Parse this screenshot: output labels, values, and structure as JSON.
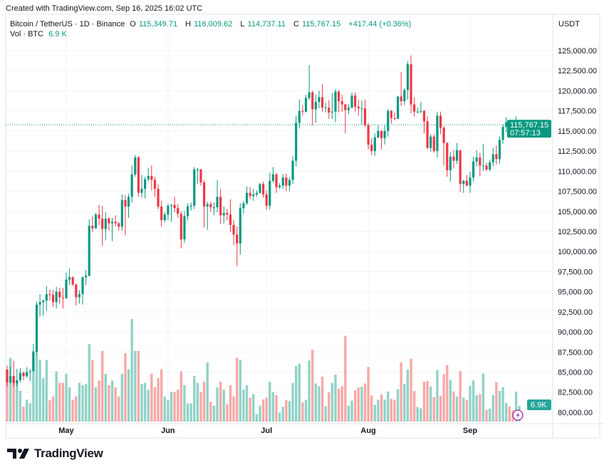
{
  "header": {
    "created": "Created with TradingView.com, Sep 16, 2025 16:02 UTC",
    "symbol": "Bitcoin / TetherUS · 1D · Binance",
    "o_label": "O",
    "o": "115,349.71",
    "h_label": "H",
    "h": "116,009.62",
    "l_label": "L",
    "l": "114,737.11",
    "c_label": "C",
    "c": "115,767.15",
    "change": "+417.44 (+0.36%)",
    "vol_label": "Vol · BTC",
    "vol": "6.9 K"
  },
  "price_axis": {
    "currency": "USDT",
    "last_price": "115,767.15",
    "countdown": "07:57:13",
    "volume_badge": "6.9K"
  },
  "footer": {
    "brand": "TradingView"
  },
  "colors": {
    "up": "#089981",
    "down": "#f23645",
    "vol_up": "#92d2c7",
    "vol_down": "#f7a9a7",
    "lightning": "#9c27b0"
  },
  "icons": {
    "logo": "tradingview-logo-icon",
    "lightning": "lightning-icon"
  },
  "chart_data": {
    "type": "candlestick",
    "first_date": "2025-04-13",
    "interval": "1D",
    "y_ticks": [
      "125,000.00",
      "122,500.00",
      "120,000.00",
      "117,500.00",
      "115,000.00",
      "112,500.00",
      "110,000.00",
      "107,500.00",
      "105,000.00",
      "102,500.00",
      "100,000.00",
      "97,500.00",
      "95,000.00",
      "92,500.00",
      "90,000.00",
      "87,500.00",
      "85,000.00",
      "82,500.00",
      "80,000.00"
    ],
    "ylim": [
      80000,
      125000
    ],
    "x_ticks": [
      {
        "label": "May",
        "date": "2025-05-01"
      },
      {
        "label": "Jun",
        "date": "2025-06-01"
      },
      {
        "label": "Jul",
        "date": "2025-07-01"
      },
      {
        "label": "Aug",
        "date": "2025-08-01"
      },
      {
        "label": "Sep",
        "date": "2025-09-01"
      }
    ],
    "grid": true,
    "columns": [
      "open",
      "high",
      "low",
      "close",
      "volume_k_btc"
    ],
    "candles": [
      [
        85300,
        85800,
        83200,
        83700,
        22.6
      ],
      [
        83700,
        85700,
        83600,
        84500,
        28
      ],
      [
        84500,
        86400,
        83200,
        83600,
        20
      ],
      [
        83600,
        85400,
        83200,
        84000,
        17
      ],
      [
        84000,
        85500,
        83700,
        84900,
        13.5
      ],
      [
        84900,
        85100,
        84000,
        84500,
        6.5
      ],
      [
        84500,
        85600,
        84300,
        85000,
        9.6
      ],
      [
        85000,
        85400,
        83900,
        85100,
        8
      ],
      [
        85100,
        88500,
        85100,
        87500,
        31
      ],
      [
        87500,
        93800,
        87200,
        93400,
        30
      ],
      [
        93400,
        94700,
        91900,
        93700,
        27
      ],
      [
        93700,
        94000,
        92000,
        93900,
        19
      ],
      [
        93900,
        95700,
        92600,
        94700,
        27
      ],
      [
        94700,
        95300,
        93900,
        94600,
        9.4
      ],
      [
        94600,
        95200,
        93100,
        93700,
        11
      ],
      [
        93700,
        95600,
        92900,
        95000,
        22
      ],
      [
        95000,
        95500,
        93500,
        94300,
        17
      ],
      [
        94300,
        95500,
        92900,
        94200,
        17
      ],
      [
        94200,
        97400,
        94100,
        96500,
        21
      ],
      [
        96500,
        97900,
        95800,
        96800,
        15
      ],
      [
        96800,
        96900,
        95700,
        95900,
        9.6
      ],
      [
        95900,
        96000,
        93300,
        94300,
        11
      ],
      [
        94300,
        95200,
        93500,
        94700,
        17
      ],
      [
        94700,
        96900,
        93400,
        96800,
        16
      ],
      [
        96800,
        97700,
        95800,
        97000,
        16.5
      ],
      [
        97000,
        104000,
        96900,
        103200,
        34
      ],
      [
        103200,
        104400,
        102400,
        102900,
        27
      ],
      [
        102900,
        104800,
        102800,
        104600,
        15
      ],
      [
        104600,
        105800,
        103300,
        104100,
        18
      ],
      [
        104100,
        105700,
        100700,
        102800,
        31
      ],
      [
        102800,
        104900,
        101400,
        104100,
        21
      ],
      [
        104100,
        104300,
        102600,
        103500,
        16
      ],
      [
        103500,
        104200,
        101300,
        103700,
        18
      ],
      [
        103700,
        104500,
        103100,
        103500,
        15
      ],
      [
        103500,
        103700,
        102600,
        103100,
        11
      ],
      [
        103100,
        107100,
        102600,
        106400,
        21
      ],
      [
        106400,
        107000,
        102000,
        105600,
        30
      ],
      [
        105600,
        107200,
        104200,
        106800,
        23
      ],
      [
        106800,
        110700,
        106100,
        109600,
        45
      ],
      [
        109600,
        112000,
        109300,
        111700,
        31
      ],
      [
        111700,
        111900,
        106800,
        107300,
        31
      ],
      [
        107300,
        109500,
        106700,
        107800,
        16.5
      ],
      [
        107800,
        109300,
        106600,
        109000,
        17
      ],
      [
        109000,
        110400,
        108700,
        109400,
        14
      ],
      [
        109400,
        110700,
        107600,
        108900,
        21
      ],
      [
        108900,
        109300,
        106800,
        107800,
        15
      ],
      [
        107800,
        108400,
        105300,
        105600,
        19
      ],
      [
        105600,
        106300,
        103100,
        103900,
        23
      ],
      [
        103900,
        104900,
        103600,
        104600,
        11
      ],
      [
        104600,
        105900,
        103900,
        105700,
        9.5
      ],
      [
        105700,
        105900,
        103700,
        105800,
        13
      ],
      [
        105800,
        106800,
        104900,
        105400,
        13
      ],
      [
        105400,
        105900,
        104200,
        104700,
        14
      ],
      [
        104700,
        105000,
        100400,
        101500,
        22
      ],
      [
        101500,
        105000,
        101100,
        104400,
        16
      ],
      [
        104400,
        106000,
        103900,
        105600,
        8
      ],
      [
        105600,
        106100,
        105100,
        105700,
        8
      ],
      [
        105700,
        110500,
        105300,
        110200,
        20
      ],
      [
        110200,
        110400,
        108400,
        110200,
        17
      ],
      [
        110200,
        110300,
        108200,
        108600,
        13
      ],
      [
        108600,
        108900,
        103000,
        105600,
        17.5
      ],
      [
        105600,
        106200,
        102700,
        105900,
        26
      ],
      [
        105900,
        106200,
        104900,
        105500,
        8.7
      ],
      [
        105500,
        106100,
        104500,
        105500,
        7
      ],
      [
        105500,
        108900,
        104900,
        106800,
        15
      ],
      [
        106800,
        107800,
        103400,
        104500,
        17.5
      ],
      [
        104500,
        105600,
        103500,
        104800,
        14
      ],
      [
        104800,
        105300,
        103900,
        104600,
        7.6
      ],
      [
        104600,
        106500,
        102400,
        103300,
        16
      ],
      [
        103300,
        103900,
        100800,
        102100,
        11
      ],
      [
        102100,
        103100,
        98200,
        101000,
        28
      ],
      [
        101000,
        106000,
        99600,
        105400,
        27
      ],
      [
        105400,
        106300,
        104700,
        106000,
        14
      ],
      [
        106000,
        108100,
        105800,
        107300,
        16
      ],
      [
        107300,
        108000,
        106500,
        106900,
        10.5
      ],
      [
        106900,
        107800,
        106300,
        107100,
        12
      ],
      [
        107100,
        107600,
        106800,
        107300,
        3.3
      ],
      [
        107300,
        108500,
        107200,
        108400,
        7
      ],
      [
        108400,
        108700,
        106700,
        107100,
        9.7
      ],
      [
        107100,
        107600,
        105200,
        105700,
        10.5
      ],
      [
        105700,
        109800,
        105200,
        108800,
        17.5
      ],
      [
        108800,
        110500,
        108600,
        109600,
        12.9
      ],
      [
        109600,
        109800,
        107300,
        108000,
        11.6
      ],
      [
        108000,
        108500,
        107800,
        108200,
        3.9
      ],
      [
        108200,
        109600,
        107800,
        109200,
        6.5
      ],
      [
        109200,
        109700,
        107500,
        108200,
        9.4
      ],
      [
        108200,
        109200,
        107500,
        108900,
        9
      ],
      [
        108900,
        111900,
        108400,
        111300,
        16.9
      ],
      [
        111300,
        116900,
        110600,
        116000,
        24.4
      ],
      [
        116000,
        118900,
        115300,
        117500,
        25.4
      ],
      [
        117500,
        118200,
        116900,
        117400,
        8.4
      ],
      [
        117400,
        119500,
        117300,
        119100,
        9.5
      ],
      [
        119100,
        123200,
        118900,
        119800,
        26.8
      ],
      [
        119800,
        120000,
        115700,
        117700,
        31.5
      ],
      [
        117700,
        119500,
        116000,
        118600,
        16.7
      ],
      [
        118600,
        120000,
        117800,
        119200,
        15.5
      ],
      [
        119200,
        120800,
        117400,
        117900,
        19.7
      ],
      [
        117900,
        118500,
        117300,
        117900,
        6.7
      ],
      [
        117900,
        118800,
        116500,
        117300,
        12.8
      ],
      [
        117300,
        119700,
        116500,
        117400,
        16.9
      ],
      [
        117400,
        120200,
        116100,
        119900,
        20.6
      ],
      [
        119900,
        120100,
        117300,
        118700,
        14.4
      ],
      [
        118700,
        119500,
        117400,
        118300,
        15.5
      ],
      [
        118300,
        118400,
        114700,
        117600,
        37.6
      ],
      [
        117600,
        118300,
        117100,
        117900,
        7
      ],
      [
        117900,
        119800,
        117800,
        119400,
        9.2
      ],
      [
        119400,
        119800,
        117400,
        118000,
        13.8
      ],
      [
        118000,
        118900,
        116900,
        117800,
        14.9
      ],
      [
        117800,
        118800,
        115800,
        117800,
        15.3
      ],
      [
        117800,
        118900,
        115500,
        115700,
        16.7
      ],
      [
        115700,
        116000,
        112700,
        113300,
        24
      ],
      [
        113300,
        114100,
        112000,
        112500,
        11.4
      ],
      [
        112500,
        114700,
        111900,
        114200,
        7.3
      ],
      [
        114200,
        115700,
        114100,
        115000,
        9.5
      ],
      [
        115000,
        115100,
        112700,
        114100,
        11.9
      ],
      [
        114100,
        115700,
        113300,
        115000,
        9.7
      ],
      [
        115000,
        117700,
        114300,
        117500,
        13.2
      ],
      [
        117500,
        117600,
        115900,
        116600,
        10
      ],
      [
        116600,
        117300,
        116300,
        116500,
        9.5
      ],
      [
        116500,
        119300,
        116500,
        119300,
        14.2
      ],
      [
        119300,
        122300,
        118100,
        118700,
        26
      ],
      [
        118700,
        120300,
        118200,
        120100,
        16.6
      ],
      [
        120100,
        123700,
        118900,
        123300,
        22.8
      ],
      [
        123300,
        124400,
        117200,
        118300,
        27.6
      ],
      [
        118300,
        119200,
        116800,
        117400,
        13.4
      ],
      [
        117400,
        117900,
        117200,
        117400,
        6.4
      ],
      [
        117400,
        118600,
        117200,
        117500,
        5.8
      ],
      [
        117500,
        117600,
        114700,
        116200,
        17.5
      ],
      [
        116200,
        116800,
        112700,
        112900,
        17.8
      ],
      [
        112900,
        114600,
        112400,
        114300,
        15.4
      ],
      [
        114300,
        114600,
        112300,
        112500,
        10.7
      ],
      [
        112500,
        117400,
        111700,
        116900,
        22.7
      ],
      [
        116900,
        117400,
        114600,
        115400,
        11.3
      ],
      [
        115400,
        115600,
        110700,
        113500,
        20.8
      ],
      [
        113500,
        113600,
        109300,
        110100,
        24.8
      ],
      [
        110100,
        112400,
        108700,
        111800,
        18.2
      ],
      [
        111800,
        112600,
        110400,
        111300,
        13.2
      ],
      [
        111300,
        113500,
        110900,
        112600,
        11
      ],
      [
        112600,
        112600,
        107400,
        108400,
        22.2
      ],
      [
        108400,
        108900,
        107300,
        108800,
        10.5
      ],
      [
        108800,
        109500,
        108100,
        108200,
        9.5
      ],
      [
        108200,
        109900,
        107300,
        109200,
        15.7
      ],
      [
        109200,
        111800,
        108700,
        111200,
        18.1
      ],
      [
        111200,
        112600,
        110600,
        111700,
        11.6
      ],
      [
        111700,
        112300,
        109400,
        110700,
        12.1
      ],
      [
        110700,
        113400,
        110000,
        110700,
        21.1
      ],
      [
        110700,
        111000,
        110000,
        110200,
        5.1
      ],
      [
        110200,
        111400,
        110000,
        111100,
        5.7
      ],
      [
        111100,
        112900,
        110600,
        112100,
        11.6
      ],
      [
        112100,
        113200,
        110800,
        111500,
        17.3
      ],
      [
        111500,
        114300,
        110900,
        113900,
        13.5
      ],
      [
        113900,
        115800,
        113400,
        115500,
        15.1
      ],
      [
        115500,
        116700,
        114800,
        116100,
        8.2
      ],
      [
        116100,
        116300,
        115200,
        115900,
        6.7
      ],
      [
        115900,
        116100,
        114800,
        115300,
        4.9
      ],
      [
        115300,
        116800,
        114500,
        115350,
        13.1
      ],
      [
        115349.71,
        116009.62,
        114737.11,
        115767.15,
        6.9
      ]
    ]
  }
}
